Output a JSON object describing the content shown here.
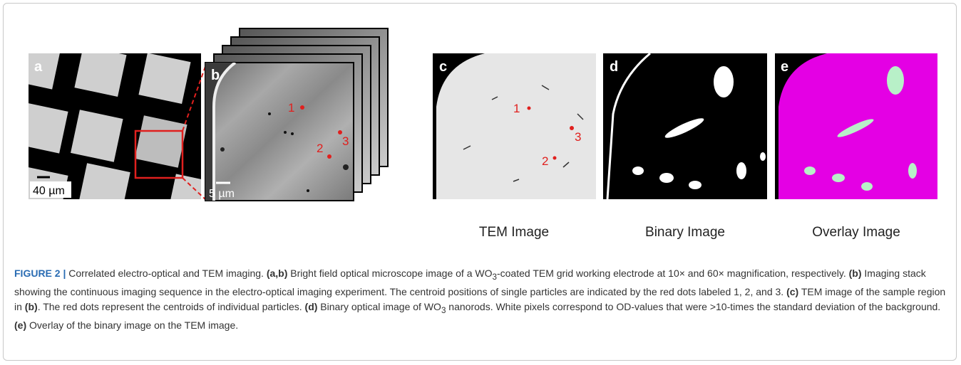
{
  "panels": [
    {
      "label": "a",
      "scale_bar": "40 µm"
    },
    {
      "label": "b",
      "scale_bar": "5 µm",
      "markers": [
        "1",
        "2",
        "3"
      ]
    },
    {
      "label": "c",
      "caption": "TEM Image",
      "markers": [
        "1",
        "2",
        "3"
      ]
    },
    {
      "label": "d",
      "caption": "Binary Image"
    },
    {
      "label": "e",
      "caption": "Overlay Image"
    }
  ],
  "caption": [
    {
      "text": "FIGURE 2 |",
      "style": "lead"
    },
    {
      "text": " Correlated electro-optical and TEM imaging. ",
      "style": "plain"
    },
    {
      "text": "(a,b)",
      "style": "bold"
    },
    {
      "text": " Bright field optical microscope image of a WO",
      "style": "plain"
    },
    {
      "text": "3",
      "style": "sub"
    },
    {
      "text": "-coated TEM grid working electrode at 10× and 60× magnification, respectively. ",
      "style": "plain"
    },
    {
      "text": "(b)",
      "style": "bold"
    },
    {
      "text": " Imaging stack showing the continuous imaging sequence in the electro-optical imaging experiment. The centroid positions of single particles are indicated by the red dots labeled 1, 2, and 3. ",
      "style": "plain"
    },
    {
      "text": "(c)",
      "style": "bold"
    },
    {
      "text": " TEM image of the sample region in ",
      "style": "plain"
    },
    {
      "text": "(b)",
      "style": "bold"
    },
    {
      "text": ". The red dots represent the centroids of individual particles. ",
      "style": "plain"
    },
    {
      "text": "(d)",
      "style": "bold"
    },
    {
      "text": " Binary optical image of WO",
      "style": "plain"
    },
    {
      "text": "3",
      "style": "sub"
    },
    {
      "text": " nanorods. White pixels correspond to OD-values that were >10-times the standard deviation of the background. ",
      "style": "plain"
    },
    {
      "text": "(e)",
      "style": "bold"
    },
    {
      "text": " Overlay of the binary image on the TEM image.",
      "style": "plain"
    }
  ]
}
